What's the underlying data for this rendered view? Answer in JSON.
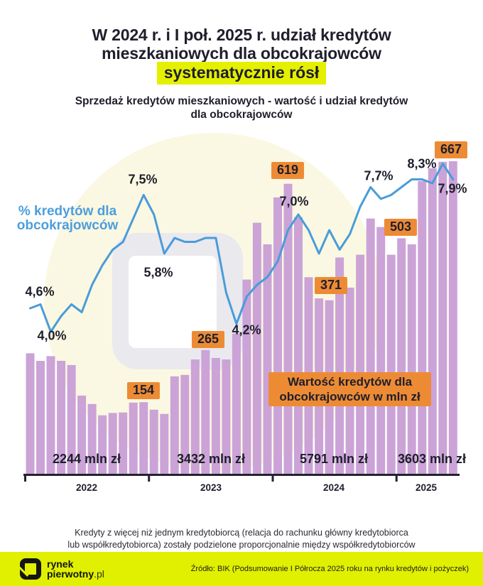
{
  "title": {
    "line1": "W 2024 r. i I poł. 2025 r. udział kredytów",
    "line2": "mieszkaniowych dla obcokrajowców",
    "highlight": "systematycznie rósł"
  },
  "subtitle": {
    "line1": "Sprzedaż kredytów mieszkaniowych - wartość i udział kredytów",
    "line2": "dla obcokrajowców"
  },
  "legends": {
    "line_legend_line1": "% kredytów dla",
    "line_legend_line2": "obcokrajowców",
    "bars_legend_line1": "Wartość kredytów dla",
    "bars_legend_line2": "obcokrajowców w mln zł"
  },
  "chart_data": {
    "type": "bar+line",
    "bar_series_name": "Wartość kredytów dla obcokrajowców (mln zł)",
    "line_series_name": "% kredytów dla obcokrajowców",
    "x_unit": "months 2022-01 … 2025-06",
    "years": [
      {
        "year": "2022",
        "total_label": "2244 mln zł",
        "bar_values": [
          258,
          242,
          252,
          242,
          233,
          168,
          150,
          126,
          131,
          132,
          153,
          154
        ],
        "line_pct": [
          4.6,
          4.7,
          4.0,
          4.4,
          4.7,
          4.5,
          5.2,
          5.7,
          6.1,
          6.3,
          6.9,
          7.5
        ]
      },
      {
        "year": "2023",
        "total_label": "3432 mln zł",
        "bar_values": [
          138,
          129,
          209,
          212,
          245,
          265,
          248,
          245,
          300,
          415,
          536,
          490
        ],
        "line_pct": [
          7.0,
          6.0,
          6.4,
          6.3,
          6.3,
          6.4,
          6.4,
          5.0,
          4.2,
          4.9,
          5.2,
          5.4
        ]
      },
      {
        "year": "2024",
        "total_label": "5791 mln zł",
        "bar_values": [
          590,
          619,
          548,
          420,
          375,
          371,
          462,
          398,
          468,
          545,
          527,
          468
        ],
        "line_pct": [
          5.8,
          6.6,
          7.0,
          6.6,
          6.0,
          6.6,
          6.1,
          6.5,
          7.2,
          7.7,
          7.4,
          7.5
        ]
      },
      {
        "year": "2025",
        "total_label": "3603 mln zł",
        "bar_values": [
          503,
          490,
          625,
          652,
          666,
          667
        ],
        "line_pct": [
          7.7,
          7.9,
          7.9,
          7.8,
          8.3,
          7.9
        ]
      }
    ],
    "bar_badges": [
      {
        "point_index": 11,
        "text": "154"
      },
      {
        "point_index": 17,
        "text": "265"
      },
      {
        "point_index": 25,
        "text": "619"
      },
      {
        "point_index": 29,
        "text": "371"
      },
      {
        "point_index": 36,
        "text": "503"
      },
      {
        "point_index": 41,
        "text": "667"
      }
    ],
    "line_labels": [
      {
        "point_index": 0,
        "text": "4,6%"
      },
      {
        "point_index": 2,
        "text": "4,0%"
      },
      {
        "point_index": 11,
        "text": "7,5%"
      },
      {
        "point_index": -1,
        "text": "5,8%"
      },
      {
        "point_index": 20,
        "text": "4,2%"
      },
      {
        "point_index": 26,
        "text": "7,0%"
      },
      {
        "point_index": 33,
        "text": "7,7%"
      },
      {
        "point_index": 40,
        "text": "8,3%"
      },
      {
        "point_index": 41,
        "text": "7,9%"
      }
    ]
  },
  "footnote": {
    "line1": "Kredyty z więcej niż jednym kredytobiorcą (relacja do rachunku główny kredytobiorca",
    "line2": "lub współkredytobiorca) zostały podzielone proporcjonalnie między współkredytobiorców"
  },
  "footer": {
    "brand_line1": "rynek",
    "brand_line2": "pierwotny",
    "brand_suffix": ".pl",
    "source": "Źródło: BIK (Podsumowanie I Półrocza 2025 roku na rynku kredytów i pożyczek)"
  },
  "colors": {
    "bar": "#cba3d7",
    "line": "#4a9cd9",
    "accent_orange": "#ed8b35",
    "accent_yellow": "#e0f000",
    "dark_text": "#1e1e2c",
    "axis": "#23232f",
    "circle_bg": "#faf8e2",
    "watermark_gray": "#e9e9ee"
  }
}
